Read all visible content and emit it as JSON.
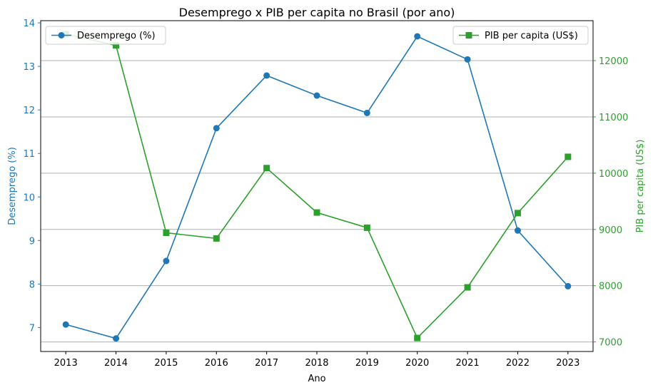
{
  "chart_data": {
    "type": "line",
    "title": "Desemprego x PIB per capita no Brasil (por ano)",
    "xlabel": "Ano",
    "x": [
      2013,
      2014,
      2015,
      2016,
      2017,
      2018,
      2019,
      2020,
      2021,
      2022,
      2023
    ],
    "y_left": {
      "label": "Desemprego (%)",
      "lim": [
        6.45,
        14.05
      ],
      "ticks": [
        7,
        8,
        9,
        10,
        11,
        12,
        13,
        14
      ],
      "color": "#1f77b4"
    },
    "y_right": {
      "label": "PIB per capita (US$)",
      "lim": [
        6830,
        12710
      ],
      "ticks": [
        7000,
        8000,
        9000,
        10000,
        11000,
        12000
      ],
      "color": "#2ca02c"
    },
    "series": [
      {
        "name": "Desemprego (%)",
        "axis": "left",
        "marker": "circle",
        "color": "#1f77b4",
        "values": [
          7.07,
          6.75,
          8.53,
          11.58,
          12.79,
          12.33,
          11.93,
          13.69,
          13.16,
          9.23,
          7.95
        ]
      },
      {
        "name": "PIB per capita (US$)",
        "axis": "right",
        "marker": "square",
        "color": "#2ca02c",
        "values": [
          12470,
          12270,
          8940,
          8840,
          10090,
          9300,
          9030,
          7070,
          7970,
          9290,
          10290
        ]
      }
    ],
    "grid": "horizontal (right axis)",
    "legend_left_placement": "upper-left",
    "legend_right_placement": "upper-right"
  }
}
